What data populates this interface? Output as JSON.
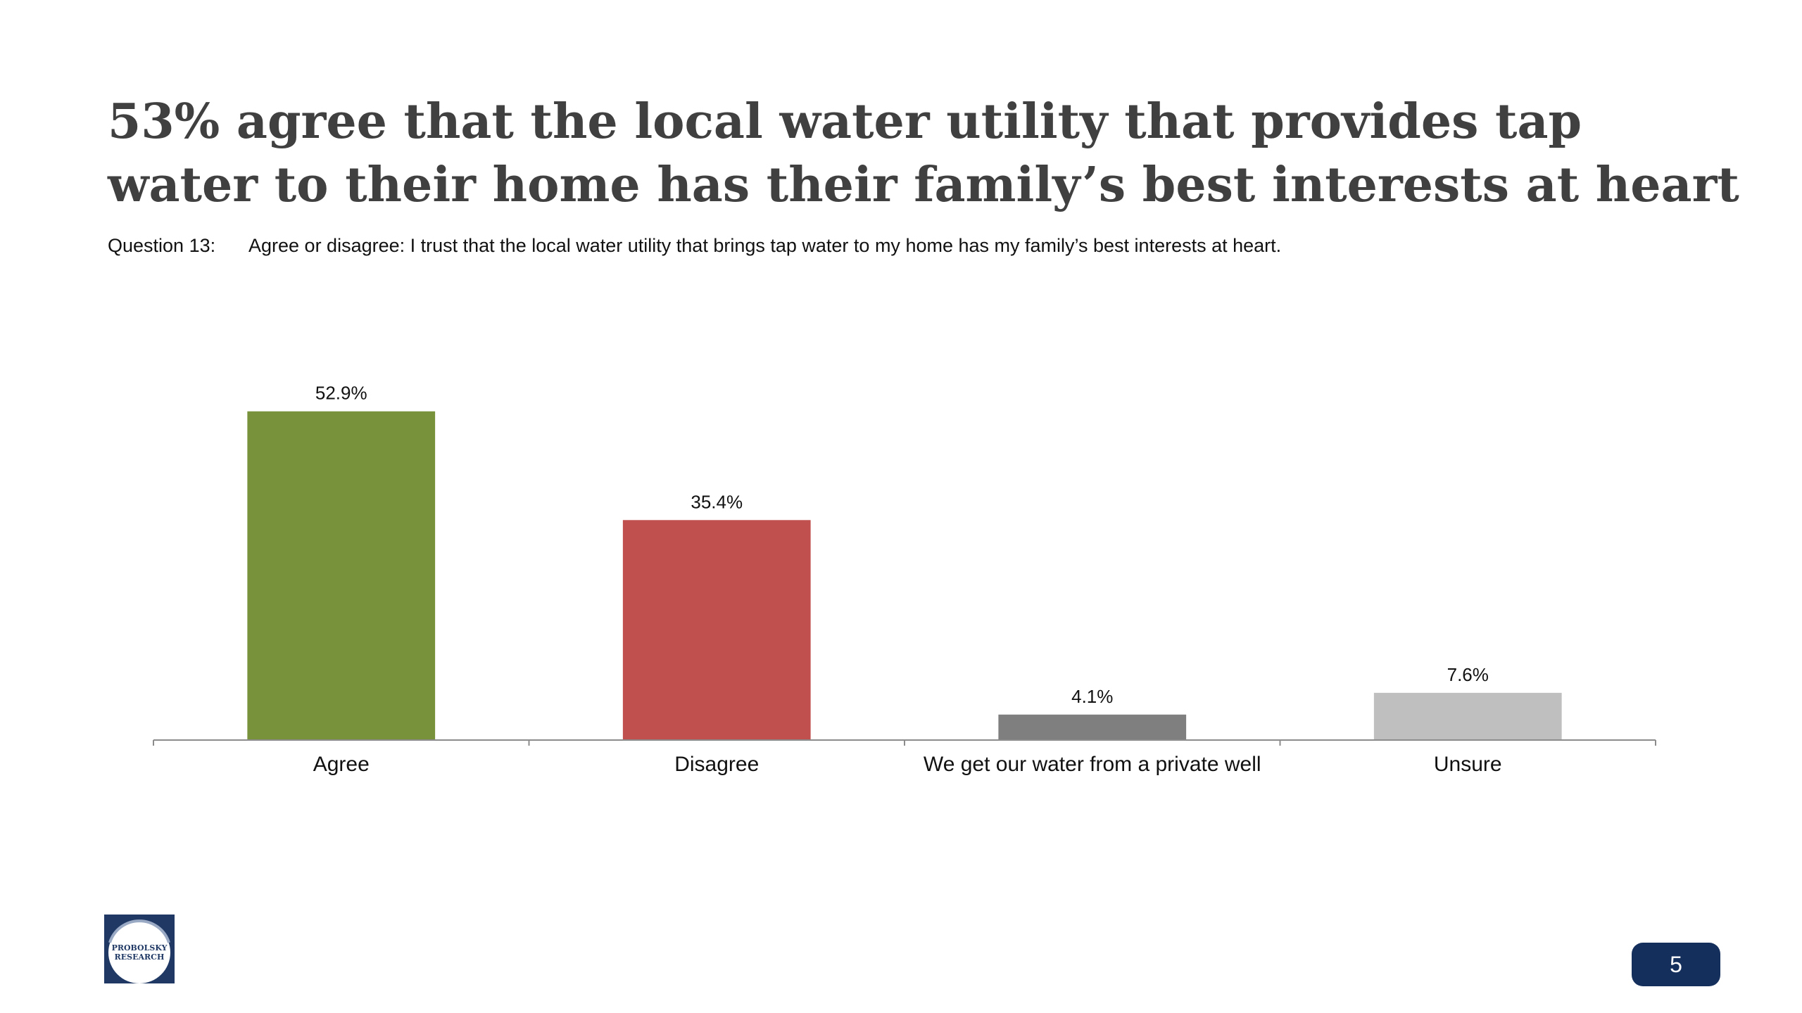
{
  "slide": {
    "title_line1": "53% agree that the local water utility that provides tap",
    "title_line2": "water to their home has their family’s best interests at heart",
    "question_label": "Question 13:",
    "question_text": "Agree or disagree: I trust that the local water utility that brings tap water to my home has my family’s best interests at heart.",
    "page_number": "5",
    "logo_text_line1": "PROBOLSKY",
    "logo_text_line2": "RESEARCH"
  },
  "chart_data": {
    "type": "bar",
    "categories": [
      "Agree",
      "Disagree",
      "We get our water from a private well",
      "Unsure"
    ],
    "values": [
      52.9,
      35.4,
      4.1,
      7.6
    ],
    "value_labels": [
      "52.9%",
      "35.4%",
      "4.1%",
      "7.6%"
    ],
    "colors": [
      "#77923b",
      "#c0504d",
      "#7f7f7f",
      "#bfbfbf"
    ],
    "ylim": [
      0,
      60
    ],
    "grid": false,
    "legend": "none"
  }
}
